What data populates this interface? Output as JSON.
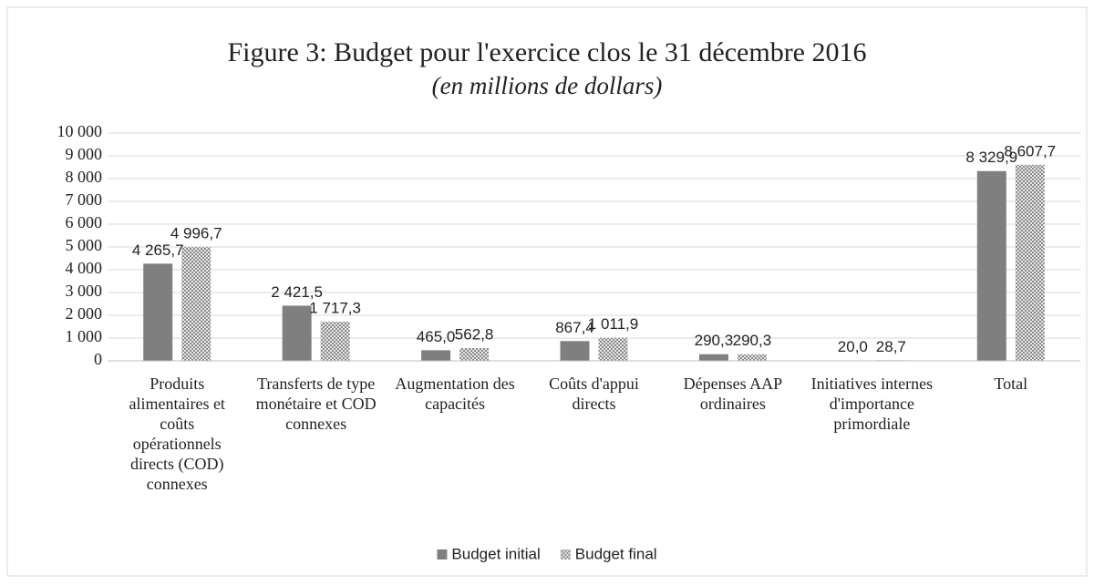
{
  "chart_data": {
    "type": "bar",
    "title": "Figure 3: Budget pour l'exercice clos le 31 décembre 2016",
    "subtitle": "(en millions de dollars)",
    "categories": [
      "Produits alimentaires et coûts opérationnels directs (COD) connexes",
      "Transferts de type monétaire et COD connexes",
      "Augmentation des capacités",
      "Coûts d'appui directs",
      "Dépenses AAP ordinaires",
      "Initiatives internes d'importance primordiale",
      "Total"
    ],
    "series": [
      {
        "name": "Budget initial",
        "color": "#7f7f7f",
        "values": [
          4265.7,
          2421.5,
          465.0,
          867.4,
          290.3,
          20.0,
          8329.9
        ],
        "value_labels": [
          "4 265,7",
          "2 421,5",
          "465,0",
          "867,4",
          "290,3",
          "20,0",
          "8 329,9"
        ]
      },
      {
        "name": "Budget final",
        "color": "#a6a6a6",
        "pattern": "checker",
        "values": [
          4996.7,
          1717.3,
          562.8,
          1011.9,
          290.3,
          28.7,
          8607.7
        ],
        "value_labels": [
          "4 996,7",
          "1 717,3",
          "562,8",
          "1 011,9",
          "290,3",
          "28,7",
          "8 607,7"
        ]
      }
    ],
    "ylim": [
      0,
      10000
    ],
    "yticks": [
      0,
      {
        "value": 1000,
        "label": "1 000"
      },
      {
        "value": 2000,
        "label": "2 000"
      },
      {
        "value": 3000,
        "label": "3 000"
      },
      {
        "value": 4000,
        "label": "4 000"
      },
      {
        "value": 5000,
        "label": "5 000"
      },
      {
        "value": 6000,
        "label": "6 000"
      },
      {
        "value": 7000,
        "label": "7 000"
      },
      {
        "value": 8000,
        "label": "8 000"
      },
      {
        "value": 9000,
        "label": "9 000"
      },
      {
        "value": 10000,
        "label": "10 000"
      }
    ],
    "grid": true,
    "legend": "bottom"
  }
}
